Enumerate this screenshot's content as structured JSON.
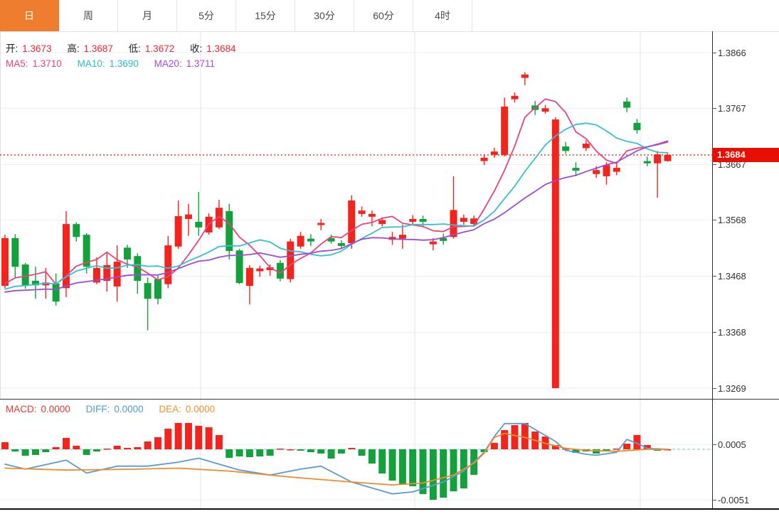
{
  "tabs": {
    "items": [
      {
        "label": "日",
        "name": "tab-day",
        "selected": true
      },
      {
        "label": "周",
        "name": "tab-week",
        "selected": false
      },
      {
        "label": "月",
        "name": "tab-month",
        "selected": false
      },
      {
        "label": "5分",
        "name": "tab-5min",
        "selected": false
      },
      {
        "label": "15分",
        "name": "tab-15min",
        "selected": false
      },
      {
        "label": "30分",
        "name": "tab-30min",
        "selected": false
      },
      {
        "label": "60分",
        "name": "tab-60min",
        "selected": false
      },
      {
        "label": "4时",
        "name": "tab-4hour",
        "selected": false
      }
    ]
  },
  "main_header": {
    "open_label": "开:",
    "open": "1.3673",
    "high_label": "高:",
    "high": "1.3687",
    "low_label": "低:",
    "low": "1.3672",
    "close_label": "收:",
    "close": "1.3684",
    "ma5_label": "MA5:",
    "ma5": "1.3710",
    "ma10_label": "MA10:",
    "ma10": "1.3690",
    "ma20_label": "MA20:",
    "ma20": "1.3711"
  },
  "macd_header": {
    "macd_label": "MACD:",
    "macd": "0.0000",
    "diff_label": "DIFF:",
    "diff": "0.0000",
    "dea_label": "DEA:",
    "dea": "0.0000"
  },
  "price_tag": "1.3684",
  "colors": {
    "up_red": "#f4231b",
    "down_green": "#12a13b",
    "ma5_pink": "#e8447d",
    "ma10_cyan": "#35c0d2",
    "ma20_purple": "#a04ad8",
    "diff_blue": "#5b9bd5",
    "dea_orange": "#f08c2a",
    "dotted_price_line": "#ff4536",
    "tag_bg": "#e80f00",
    "grid": "#e7eef4",
    "vgrid": "#dde6ee",
    "zero_dash": "#8fd0dd",
    "tab_selected_bg": "#ee7e2d"
  },
  "chart_data": {
    "type": "candlestick+macd",
    "title": "",
    "legend": [
      "MA5",
      "MA10",
      "MA20",
      "MACD",
      "DIFF",
      "DEA"
    ],
    "price_axis_ticks": [
      "1.3866",
      "1.3767",
      "1.3667",
      "1.3568",
      "1.3468",
      "1.3368",
      "1.3269"
    ],
    "macd_axis_ticks": [
      "0.0005",
      "-0.0051"
    ],
    "current_price": 1.3684,
    "grid_vertical_x": [
      282,
      583,
      900
    ],
    "ma_periods": [
      5,
      10,
      20
    ],
    "ma_seed_close": 1.3435,
    "candles_ohlc": [
      [
        1.3451,
        1.3542,
        1.3447,
        1.3536
      ],
      [
        1.3536,
        1.3543,
        1.3466,
        1.3485
      ],
      [
        1.3489,
        1.3492,
        1.3446,
        1.3451
      ],
      [
        1.346,
        1.3485,
        1.3428,
        1.3452
      ],
      [
        1.3452,
        1.3483,
        1.3428,
        1.3457
      ],
      [
        1.3455,
        1.3473,
        1.3416,
        1.3423
      ],
      [
        1.3447,
        1.3584,
        1.3431,
        1.3561
      ],
      [
        1.3561,
        1.3564,
        1.353,
        1.3538
      ],
      [
        1.3542,
        1.3545,
        1.3473,
        1.3485
      ],
      [
        1.3457,
        1.3502,
        1.3454,
        1.3483
      ],
      [
        1.346,
        1.3511,
        1.3441,
        1.3488
      ],
      [
        1.345,
        1.3523,
        1.3423,
        1.3494
      ],
      [
        1.3519,
        1.3524,
        1.3483,
        1.3498
      ],
      [
        1.3504,
        1.3509,
        1.3437,
        1.346
      ],
      [
        1.3456,
        1.3466,
        1.3372,
        1.3428
      ],
      [
        1.3463,
        1.3469,
        1.3418,
        1.3428
      ],
      [
        1.3454,
        1.354,
        1.3447,
        1.3523
      ],
      [
        1.3521,
        1.3603,
        1.3517,
        1.3575
      ],
      [
        1.357,
        1.3597,
        1.354,
        1.3578
      ],
      [
        1.3565,
        1.3618,
        1.354,
        1.3555
      ],
      [
        1.3546,
        1.358,
        1.3542,
        1.3574
      ],
      [
        1.3555,
        1.3604,
        1.3552,
        1.359
      ],
      [
        1.3584,
        1.3597,
        1.3498,
        1.3513
      ],
      [
        1.3514,
        1.3517,
        1.3454,
        1.3456
      ],
      [
        1.3451,
        1.3488,
        1.3418,
        1.3483
      ],
      [
        1.3477,
        1.3487,
        1.3467,
        1.3482
      ],
      [
        1.3479,
        1.3489,
        1.3469,
        1.3484
      ],
      [
        1.3492,
        1.3497,
        1.3459,
        1.3464
      ],
      [
        1.3463,
        1.3535,
        1.3457,
        1.353
      ],
      [
        1.3521,
        1.3547,
        1.3517,
        1.354
      ],
      [
        1.3535,
        1.3543,
        1.3522,
        1.353
      ],
      [
        1.356,
        1.357,
        1.355,
        1.3563
      ],
      [
        1.3536,
        1.3542,
        1.3526,
        1.353
      ],
      [
        1.3527,
        1.3532,
        1.3517,
        1.3522
      ],
      [
        1.3527,
        1.3612,
        1.3517,
        1.3603
      ],
      [
        1.3579,
        1.3592,
        1.3574,
        1.3585
      ],
      [
        1.3574,
        1.3585,
        1.3557,
        1.3579
      ],
      [
        1.3561,
        1.3573,
        1.3557,
        1.3568
      ],
      [
        1.3533,
        1.3547,
        1.3524,
        1.3538
      ],
      [
        1.3535,
        1.356,
        1.3517,
        1.3542
      ],
      [
        1.3565,
        1.3577,
        1.356,
        1.357
      ],
      [
        1.357,
        1.3576,
        1.3555,
        1.3565
      ],
      [
        1.3525,
        1.3536,
        1.3514,
        1.353
      ],
      [
        1.3536,
        1.3544,
        1.3524,
        1.3531
      ],
      [
        1.3538,
        1.3646,
        1.3535,
        1.3586
      ],
      [
        1.3565,
        1.3578,
        1.356,
        1.3572
      ],
      [
        1.3561,
        1.3576,
        1.3557,
        1.3571
      ],
      [
        1.3673,
        1.3685,
        1.3666,
        1.3679
      ],
      [
        1.3684,
        1.3697,
        1.3679,
        1.369
      ],
      [
        1.3684,
        1.3786,
        1.3681,
        1.377
      ],
      [
        1.3783,
        1.3795,
        1.3777,
        1.3789
      ],
      [
        1.3821,
        1.3831,
        1.3808,
        1.3827
      ],
      [
        1.3772,
        1.378,
        1.3755,
        1.3764
      ],
      [
        1.3761,
        1.3773,
        1.3757,
        1.3767
      ],
      [
        1.3269,
        1.3751,
        1.3269,
        1.3747
      ],
      [
        1.3699,
        1.3707,
        1.3686,
        1.3691
      ],
      [
        1.3661,
        1.3671,
        1.3646,
        1.3656
      ],
      [
        1.3696,
        1.371,
        1.3691,
        1.3704
      ],
      [
        1.365,
        1.3664,
        1.3643,
        1.3657
      ],
      [
        1.3646,
        1.3671,
        1.3631,
        1.3666
      ],
      [
        1.3654,
        1.3669,
        1.3648,
        1.3661
      ],
      [
        1.3779,
        1.3786,
        1.376,
        1.3768
      ],
      [
        1.3741,
        1.3748,
        1.3722,
        1.3728
      ],
      [
        1.3673,
        1.3681,
        1.3664,
        1.3669
      ],
      [
        1.3669,
        1.3691,
        1.3608,
        1.3685
      ],
      [
        1.3673,
        1.3687,
        1.3672,
        1.3684
      ]
    ],
    "macd_hist": [
      0.00072,
      -0.00022,
      -0.00065,
      -0.00057,
      -0.00029,
      0.00022,
      0.00115,
      0.00036,
      -0.00057,
      -0.00022,
      7e-05,
      0.00036,
      0.00014,
      0.00022,
      0.00079,
      0.00122,
      0.00208,
      0.00266,
      0.00266,
      0.00237,
      0.00223,
      0.00144,
      -0.00086,
      -0.00072,
      -0.00079,
      -0.00072,
      -0.00065,
      7e-05,
      0.0,
      -0.00014,
      -0.00029,
      -0.00043,
      -0.00093,
      -0.00043,
      0.00014,
      -0.00065,
      -0.00144,
      -0.00244,
      -0.00316,
      -0.00359,
      -0.00373,
      -0.00452,
      -0.0051,
      -0.00488,
      -0.00424,
      -0.00395,
      -0.00258,
      -0.00029,
      0.00065,
      0.00194,
      0.00244,
      0.00266,
      0.0018,
      0.00129,
      0.00043,
      7e-05,
      -0.00036,
      -0.00022,
      -0.00043,
      -7e-05,
      7e-05,
      0.00057,
      0.00144,
      0.00043,
      -0.00014,
      0.0
    ],
    "diff_points": [
      [
        0,
        -0.0015
      ],
      [
        2,
        -0.002
      ],
      [
        6,
        -0.0011
      ],
      [
        8,
        -0.0024
      ],
      [
        11,
        -0.0017
      ],
      [
        14,
        -0.0017
      ],
      [
        17,
        -0.0013
      ],
      [
        19,
        -0.0009
      ],
      [
        23,
        -0.0021
      ],
      [
        26,
        -0.0026
      ],
      [
        29,
        -0.002
      ],
      [
        31,
        -0.0017
      ],
      [
        34,
        -0.0033
      ],
      [
        38,
        -0.0045
      ],
      [
        40,
        -0.0043
      ],
      [
        43,
        -0.0033
      ],
      [
        45,
        -0.0022
      ],
      [
        46,
        -0.0013
      ],
      [
        47,
        -0.0003
      ],
      [
        48,
        0.0013
      ],
      [
        49,
        0.0026
      ],
      [
        51,
        0.0026
      ],
      [
        52,
        0.002
      ],
      [
        54,
        0.0008
      ],
      [
        55,
        -0.0001
      ],
      [
        57,
        -0.0005
      ],
      [
        58,
        -0.0006
      ],
      [
        60,
        -0.0003
      ],
      [
        61,
        0.001
      ],
      [
        62,
        0.0006
      ],
      [
        63,
        0.0001
      ],
      [
        65,
        0.0
      ]
    ],
    "dea_points": [
      [
        0,
        -0.0019
      ],
      [
        6,
        -0.0021
      ],
      [
        13,
        -0.002
      ],
      [
        17,
        -0.0019
      ],
      [
        22,
        -0.0022
      ],
      [
        28,
        -0.0028
      ],
      [
        34,
        -0.0033
      ],
      [
        38,
        -0.0036
      ],
      [
        41,
        -0.0034
      ],
      [
        44,
        -0.0026
      ],
      [
        46,
        -0.0014
      ],
      [
        47,
        -0.0004
      ],
      [
        48,
        0.0012
      ],
      [
        49,
        0.0016
      ],
      [
        51,
        0.0012
      ],
      [
        53,
        0.0006
      ],
      [
        55,
        0.0001
      ],
      [
        57,
        -0.0001
      ],
      [
        60,
        -0.0002
      ],
      [
        63,
        0.0
      ],
      [
        65,
        0.0
      ]
    ]
  }
}
